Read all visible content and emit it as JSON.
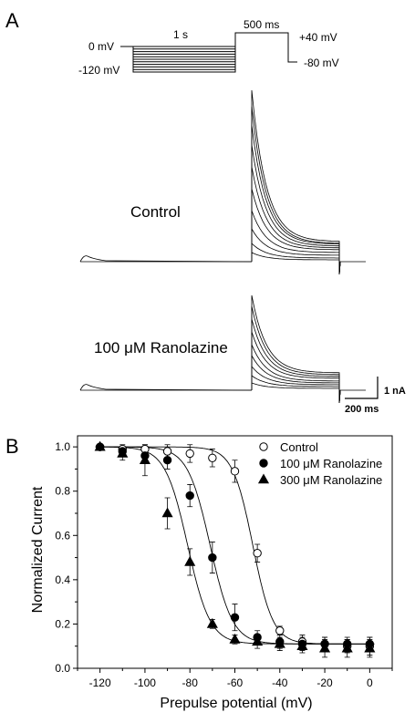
{
  "panel_a": {
    "label": "A",
    "protocol": {
      "v_hold_label": "0 mV",
      "v_min_label": "-120 mV",
      "dur1_label": "1 s",
      "dur2_label": "500 ms",
      "v_test_label": "+40 mV",
      "v_return_label": "-80 mV"
    },
    "control_label": "Control",
    "drug_label": "100 μM Ranolazine",
    "scalebar_v_label": "1 nA",
    "scalebar_h_label": "200 ms"
  },
  "chart_data": [
    {
      "panel": "B",
      "type": "scatter",
      "label": "B",
      "xlabel": "Prepulse potential (mV)",
      "ylabel": "Normalized Current",
      "xlim": [
        -130,
        10
      ],
      "ylim": [
        0.0,
        1.05
      ],
      "xticks": [
        -120,
        -100,
        -80,
        -60,
        -40,
        -20,
        0
      ],
      "yticks": [
        0.0,
        0.2,
        0.4,
        0.6,
        0.8,
        1.0
      ],
      "tick_labels_x": [
        "-120",
        "-100",
        "-80",
        "-60",
        "-40",
        "-20",
        "0"
      ],
      "tick_labels_y": [
        "0.0",
        "0.2",
        "0.4",
        "0.6",
        "0.8",
        "1.0"
      ],
      "legend_position": "top-right",
      "fit_curves": "Boltzmann",
      "series": [
        {
          "name": "Control",
          "marker": "open-circle",
          "x": [
            -120,
            -110,
            -100,
            -90,
            -80,
            -70,
            -60,
            -50,
            -40,
            -30,
            -20,
            -10,
            0
          ],
          "y": [
            1.0,
            0.99,
            0.99,
            0.98,
            0.97,
            0.95,
            0.89,
            0.52,
            0.17,
            0.12,
            0.11,
            0.1,
            0.1
          ],
          "err": [
            0.01,
            0.02,
            0.02,
            0.03,
            0.04,
            0.04,
            0.05,
            0.04,
            0.02,
            0.03,
            0.03,
            0.03,
            0.04
          ],
          "v_half": -52,
          "slope": 4.5,
          "bottom": 0.11
        },
        {
          "name": "100 μM Ranolazine",
          "marker": "filled-circle",
          "x": [
            -120,
            -110,
            -100,
            -90,
            -80,
            -70,
            -60,
            -50,
            -40,
            -30,
            -20,
            -10,
            0
          ],
          "y": [
            1.0,
            0.98,
            0.96,
            0.94,
            0.78,
            0.5,
            0.23,
            0.14,
            0.12,
            0.11,
            0.11,
            0.11,
            0.11
          ],
          "err": [
            0.01,
            0.02,
            0.03,
            0.04,
            0.05,
            0.07,
            0.06,
            0.03,
            0.03,
            0.03,
            0.03,
            0.03,
            0.03
          ],
          "v_half": -71,
          "slope": 5.0,
          "bottom": 0.11
        },
        {
          "name": "300 μM Ranolazine",
          "marker": "filled-triangle",
          "x": [
            -120,
            -110,
            -100,
            -90,
            -80,
            -70,
            -60,
            -50,
            -40,
            -30,
            -20,
            -10,
            0
          ],
          "y": [
            1.0,
            0.97,
            0.94,
            0.7,
            0.48,
            0.2,
            0.13,
            0.12,
            0.11,
            0.1,
            0.09,
            0.09,
            0.09
          ],
          "err": [
            0.01,
            0.03,
            0.07,
            0.07,
            0.06,
            0.02,
            0.02,
            0.03,
            0.03,
            0.03,
            0.04,
            0.04,
            0.04
          ],
          "v_half": -81,
          "slope": 5.0,
          "bottom": 0.11
        }
      ]
    }
  ]
}
